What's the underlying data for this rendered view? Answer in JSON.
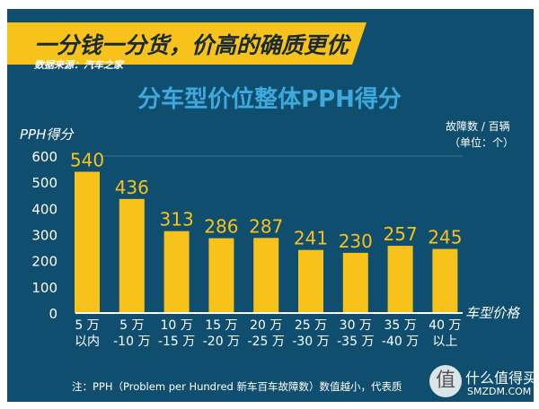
{
  "banner": {
    "headline": "一分钱一分货，价高的确质更优",
    "source": "数据来源：汽车之家"
  },
  "watermark": {
    "text": "什么值得买",
    "domain": "SMZDM.COM",
    "glyph": "值"
  },
  "note": "注：PPH（Problem per Hundred 新车百车故障数）数值越小，代表质",
  "chart_data": {
    "type": "bar",
    "title": "分车型价位整体PPH得分",
    "ylabel": "PPH得分",
    "xlabel": "车型价格",
    "unit_label": [
      "故障数 / 百辆",
      "（单位：个）"
    ],
    "ylim": [
      0,
      600
    ],
    "yticks": [
      "0",
      "100",
      "200",
      "300",
      "400",
      "500",
      "600"
    ],
    "categories": [
      [
        "5 万",
        "以内"
      ],
      [
        "5 万",
        "-10 万"
      ],
      [
        "10 万",
        "-15 万"
      ],
      [
        "15 万",
        "-20 万"
      ],
      [
        "20 万",
        "-25 万"
      ],
      [
        "25 万",
        "-30 万"
      ],
      [
        "30 万",
        "-35 万"
      ],
      [
        "35 万",
        "-40 万"
      ],
      [
        "40 万",
        "以上"
      ]
    ],
    "values": [
      540,
      436,
      313,
      286,
      287,
      241,
      230,
      257,
      245
    ],
    "grid": true,
    "colors": {
      "bar": "#f7c21a",
      "label": "#f7c21a",
      "background": "#0f4e6f",
      "title": "#3ea9dc"
    }
  }
}
